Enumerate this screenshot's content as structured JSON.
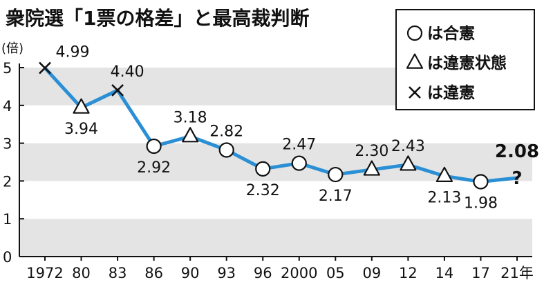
{
  "chart_data": {
    "type": "line",
    "title": "衆院選「1票の格差」と最高裁判断",
    "ylabel": "(倍)",
    "ylim": [
      0,
      5
    ],
    "yticks": [
      0,
      1,
      2,
      3,
      4,
      5
    ],
    "grid": "alternating-bands",
    "legend_position": "top-right",
    "line_color": "#2a8fd4",
    "categories": [
      "1972",
      "80",
      "83",
      "86",
      "90",
      "93",
      "96",
      "2000",
      "05",
      "09",
      "12",
      "14",
      "17",
      "21年"
    ],
    "values": [
      4.99,
      3.94,
      4.4,
      2.92,
      3.18,
      2.82,
      2.32,
      2.47,
      2.17,
      2.3,
      2.43,
      2.13,
      1.98,
      2.08
    ],
    "value_labels": [
      "4.99",
      "3.94",
      "4.40",
      "2.92",
      "3.18",
      "2.82",
      "2.32",
      "2.47",
      "2.17",
      "2.30",
      "2.43",
      "2.13",
      "1.98",
      "2.08"
    ],
    "markers": [
      "cross",
      "triangle",
      "cross",
      "circle",
      "triangle",
      "circle",
      "circle",
      "circle",
      "circle",
      "triangle",
      "triangle",
      "triangle",
      "circle",
      "question"
    ],
    "pending_mark": "?",
    "legend": [
      {
        "marker": "circle",
        "label": "は合憲"
      },
      {
        "marker": "triangle",
        "label": "は違憲状態"
      },
      {
        "marker": "cross",
        "label": "は違憲"
      }
    ]
  }
}
